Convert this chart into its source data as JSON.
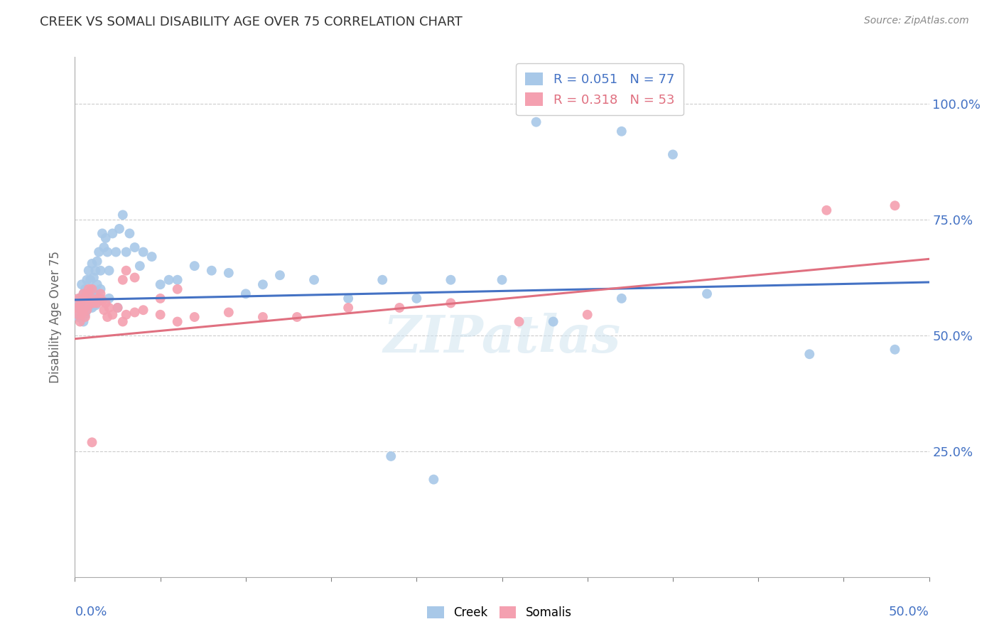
{
  "title": "CREEK VS SOMALI DISABILITY AGE OVER 75 CORRELATION CHART",
  "source": "Source: ZipAtlas.com",
  "ylabel": "Disability Age Over 75",
  "ytick_labels": [
    "25.0%",
    "50.0%",
    "75.0%",
    "100.0%"
  ],
  "ytick_vals": [
    0.25,
    0.5,
    0.75,
    1.0
  ],
  "xlim": [
    0.0,
    0.5
  ],
  "ylim": [
    -0.02,
    1.1
  ],
  "creek_R": 0.051,
  "creek_N": 77,
  "somali_R": 0.318,
  "somali_N": 53,
  "creek_color": "#a8c8e8",
  "somali_color": "#f4a0b0",
  "creek_line_color": "#4472c4",
  "somali_line_color": "#e07080",
  "watermark": "ZIPatlas",
  "background_color": "#ffffff",
  "creek_line_x0": 0.0,
  "creek_line_x1": 0.5,
  "creek_line_y0": 0.577,
  "creek_line_y1": 0.615,
  "somali_line_x0": 0.0,
  "somali_line_x1": 0.5,
  "somali_line_y0": 0.493,
  "somali_line_y1": 0.665,
  "creek_scatter_x": [
    0.001,
    0.002,
    0.003,
    0.003,
    0.004,
    0.004,
    0.005,
    0.005,
    0.006,
    0.006,
    0.007,
    0.007,
    0.008,
    0.008,
    0.009,
    0.009,
    0.01,
    0.01,
    0.011,
    0.011,
    0.012,
    0.012,
    0.013,
    0.013,
    0.014,
    0.015,
    0.015,
    0.016,
    0.017,
    0.018,
    0.019,
    0.02,
    0.022,
    0.024,
    0.026,
    0.028,
    0.03,
    0.032,
    0.035,
    0.038,
    0.04,
    0.045,
    0.05,
    0.055,
    0.06,
    0.07,
    0.08,
    0.09,
    0.1,
    0.11,
    0.12,
    0.14,
    0.16,
    0.18,
    0.2,
    0.22,
    0.25,
    0.28,
    0.32,
    0.37,
    0.43,
    0.48,
    0.27,
    0.32,
    0.35,
    0.185,
    0.21,
    0.005,
    0.006,
    0.008,
    0.01,
    0.012,
    0.015,
    0.02,
    0.025
  ],
  "creek_scatter_y": [
    0.565,
    0.54,
    0.58,
    0.56,
    0.61,
    0.575,
    0.545,
    0.59,
    0.57,
    0.6,
    0.555,
    0.62,
    0.64,
    0.58,
    0.62,
    0.585,
    0.655,
    0.6,
    0.59,
    0.625,
    0.64,
    0.595,
    0.61,
    0.66,
    0.68,
    0.64,
    0.6,
    0.72,
    0.69,
    0.71,
    0.68,
    0.64,
    0.72,
    0.68,
    0.73,
    0.76,
    0.68,
    0.72,
    0.69,
    0.65,
    0.68,
    0.67,
    0.61,
    0.62,
    0.62,
    0.65,
    0.64,
    0.635,
    0.59,
    0.61,
    0.63,
    0.62,
    0.58,
    0.62,
    0.58,
    0.62,
    0.62,
    0.53,
    0.58,
    0.59,
    0.46,
    0.47,
    0.96,
    0.94,
    0.89,
    0.24,
    0.19,
    0.53,
    0.545,
    0.56,
    0.56,
    0.565,
    0.58,
    0.58,
    0.56
  ],
  "somali_scatter_x": [
    0.001,
    0.002,
    0.002,
    0.003,
    0.003,
    0.004,
    0.004,
    0.005,
    0.005,
    0.006,
    0.006,
    0.007,
    0.007,
    0.008,
    0.008,
    0.009,
    0.01,
    0.01,
    0.011,
    0.012,
    0.013,
    0.014,
    0.015,
    0.016,
    0.017,
    0.018,
    0.019,
    0.02,
    0.022,
    0.025,
    0.028,
    0.03,
    0.035,
    0.04,
    0.05,
    0.06,
    0.07,
    0.09,
    0.11,
    0.13,
    0.16,
    0.19,
    0.22,
    0.028,
    0.03,
    0.035,
    0.05,
    0.06,
    0.26,
    0.3,
    0.44,
    0.48,
    0.01
  ],
  "somali_scatter_y": [
    0.56,
    0.545,
    0.58,
    0.53,
    0.565,
    0.545,
    0.575,
    0.555,
    0.59,
    0.54,
    0.58,
    0.555,
    0.59,
    0.565,
    0.6,
    0.575,
    0.58,
    0.6,
    0.57,
    0.575,
    0.57,
    0.58,
    0.59,
    0.575,
    0.555,
    0.57,
    0.54,
    0.56,
    0.545,
    0.56,
    0.53,
    0.545,
    0.55,
    0.555,
    0.545,
    0.53,
    0.54,
    0.55,
    0.54,
    0.54,
    0.56,
    0.56,
    0.57,
    0.62,
    0.64,
    0.625,
    0.58,
    0.6,
    0.53,
    0.545,
    0.77,
    0.78,
    0.27
  ]
}
